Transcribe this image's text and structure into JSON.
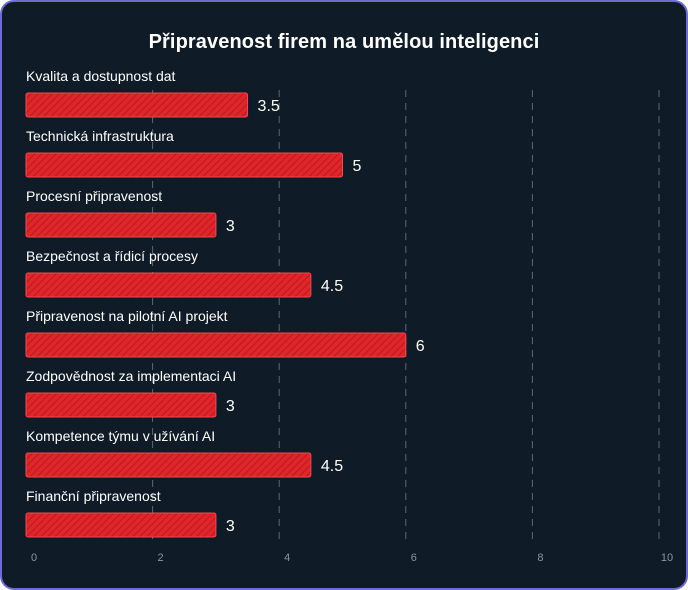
{
  "chart_data": {
    "type": "bar",
    "orientation": "horizontal",
    "title": "Připravenost firem na umělou inteligenci",
    "categories": [
      "Kvalita a dostupnost dat",
      "Technická infrastruktura",
      "Procesní připravenost",
      "Bezpečnost a řídicí procesy",
      "Připravenost na pilotní AI projekt",
      "Zodpovědnost za implementaci AI",
      "Kompetence týmu v užívání AI",
      "Finanční připravenost"
    ],
    "values": [
      3.5,
      5,
      3,
      4.5,
      6,
      3,
      4.5,
      3
    ],
    "value_labels": [
      "3.5",
      "5",
      "3",
      "4.5",
      "6",
      "3",
      "4.5",
      "3"
    ],
    "xlim": [
      0,
      10
    ],
    "xticks": [
      "0",
      "2",
      "4",
      "6",
      "8",
      "10"
    ],
    "grid": true,
    "colors": {
      "background": "#0f1b26",
      "border": "#6d6bd6",
      "bar": "#e0262b",
      "bar_stripe": "#b81a1f",
      "grid": "#5c6975",
      "text": "#ffffff",
      "tick": "#8a96a3"
    }
  }
}
